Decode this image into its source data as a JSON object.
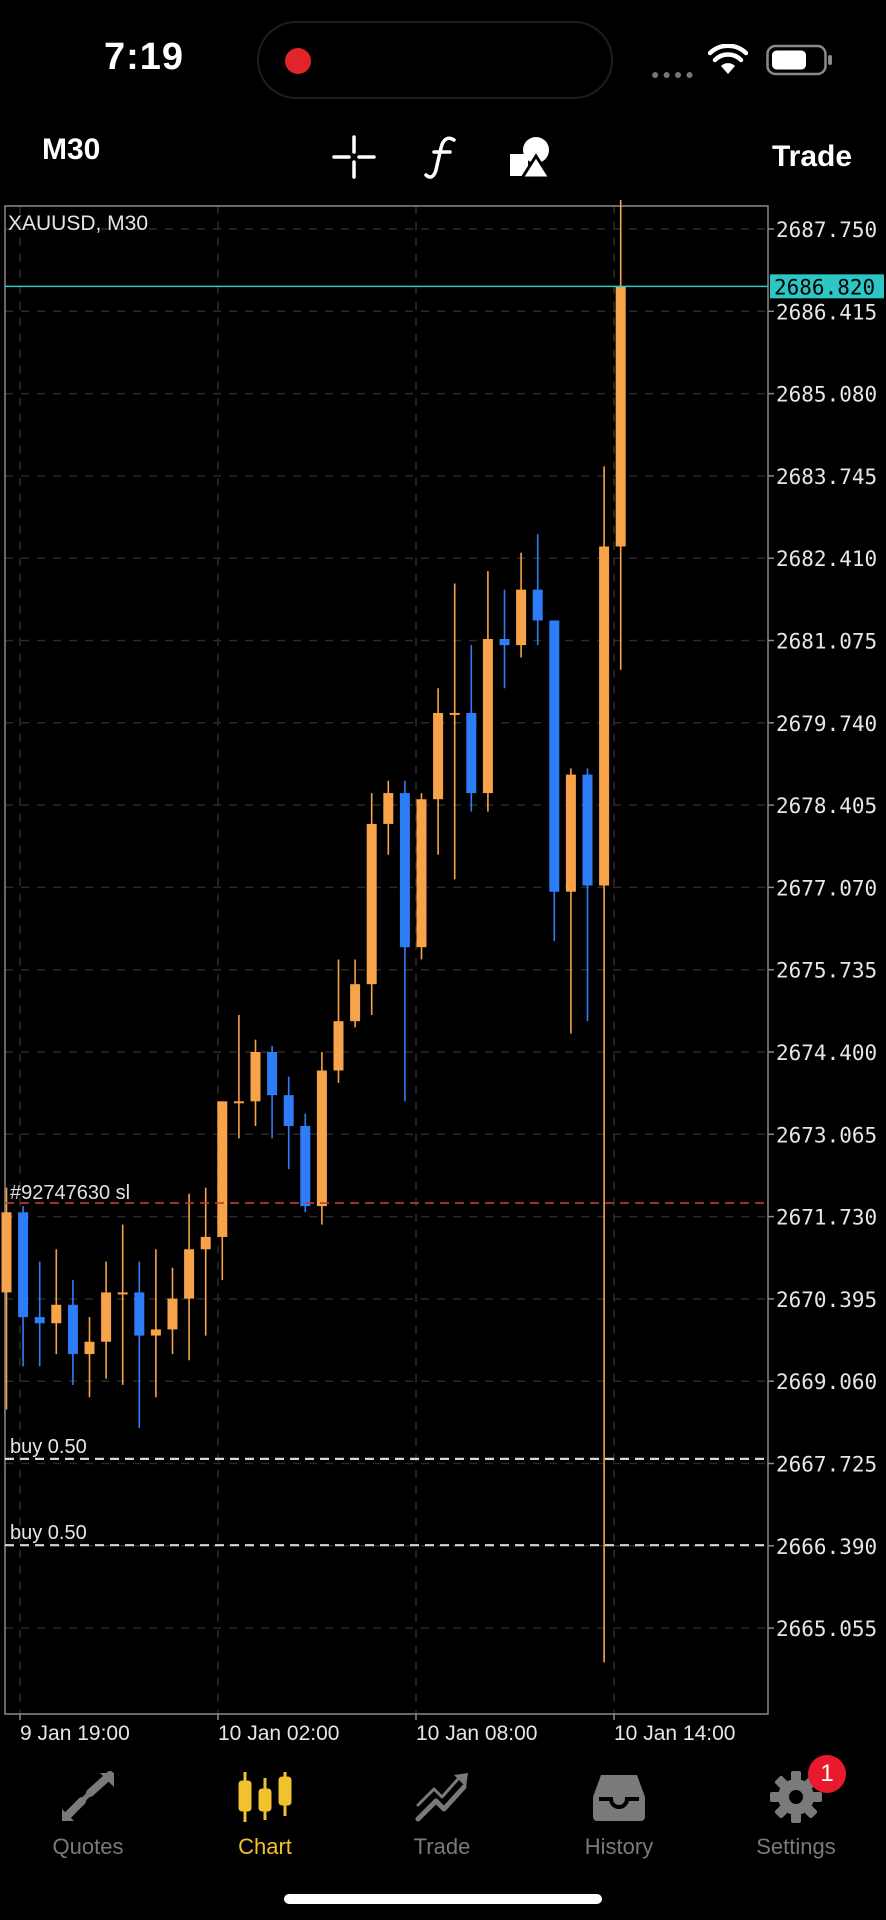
{
  "status": {
    "time": "7:19"
  },
  "toolbar": {
    "timeframe": "M30",
    "trade_label": "Trade",
    "tools": [
      "crosshair-icon",
      "indicator-function-icon",
      "shapes-icon"
    ]
  },
  "chart": {
    "symbol_label": "XAUUSD, M30",
    "current_price": "2686.820",
    "y_ticks": [
      "2687.750",
      "2686.415",
      "2685.080",
      "2683.745",
      "2682.410",
      "2681.075",
      "2679.740",
      "2678.405",
      "2677.070",
      "2675.735",
      "2674.400",
      "2673.065",
      "2671.730",
      "2670.395",
      "2669.060",
      "2667.725",
      "2666.390",
      "2665.055"
    ],
    "x_ticks": [
      "9 Jan 19:00",
      "10 Jan 02:00",
      "10 Jan 08:00",
      "10 Jan 14:00"
    ],
    "sl_label": "#92747630 sl",
    "order_lines": [
      {
        "label": "buy 0.50",
        "price": 2667.8
      },
      {
        "label": "buy 0.50",
        "price": 2666.4
      }
    ],
    "colors": {
      "bull": "#f6a34a",
      "bear": "#2f7df6",
      "sl": "#c43a34",
      "price_line": "#2cc6c4"
    }
  },
  "chart_data": {
    "type": "candlestick",
    "symbol": "XAUUSD",
    "timeframe": "M30",
    "ylim": [
      2664.2,
      2688.6
    ],
    "current_price": 2686.82,
    "stop_loss": 2671.95,
    "candles": [
      {
        "o": 2670.5,
        "h": 2672.2,
        "l": 2668.6,
        "c": 2671.8
      },
      {
        "o": 2671.8,
        "h": 2671.9,
        "l": 2669.3,
        "c": 2670.1
      },
      {
        "o": 2670.1,
        "h": 2671.0,
        "l": 2669.3,
        "c": 2670.0
      },
      {
        "o": 2670.0,
        "h": 2671.2,
        "l": 2669.5,
        "c": 2670.3
      },
      {
        "o": 2670.3,
        "h": 2670.7,
        "l": 2669.0,
        "c": 2669.5
      },
      {
        "o": 2669.5,
        "h": 2670.1,
        "l": 2668.8,
        "c": 2669.7
      },
      {
        "o": 2669.7,
        "h": 2671.0,
        "l": 2669.1,
        "c": 2670.5
      },
      {
        "o": 2670.5,
        "h": 2671.6,
        "l": 2669.0,
        "c": 2670.5
      },
      {
        "o": 2670.5,
        "h": 2671.0,
        "l": 2668.3,
        "c": 2669.8
      },
      {
        "o": 2669.8,
        "h": 2671.2,
        "l": 2668.8,
        "c": 2669.9
      },
      {
        "o": 2669.9,
        "h": 2670.9,
        "l": 2669.5,
        "c": 2670.4
      },
      {
        "o": 2670.4,
        "h": 2672.1,
        "l": 2669.4,
        "c": 2671.2
      },
      {
        "o": 2671.2,
        "h": 2672.2,
        "l": 2669.8,
        "c": 2671.4
      },
      {
        "o": 2671.4,
        "h": 2673.6,
        "l": 2670.7,
        "c": 2673.6
      },
      {
        "o": 2673.6,
        "h": 2675.0,
        "l": 2673.0,
        "c": 2673.6
      },
      {
        "o": 2673.6,
        "h": 2674.6,
        "l": 2673.2,
        "c": 2674.4
      },
      {
        "o": 2674.4,
        "h": 2674.5,
        "l": 2673.0,
        "c": 2673.7
      },
      {
        "o": 2673.7,
        "h": 2674.0,
        "l": 2672.5,
        "c": 2673.2
      },
      {
        "o": 2673.2,
        "h": 2673.4,
        "l": 2671.8,
        "c": 2671.9
      },
      {
        "o": 2671.9,
        "h": 2674.4,
        "l": 2671.6,
        "c": 2674.1
      },
      {
        "o": 2674.1,
        "h": 2675.9,
        "l": 2673.9,
        "c": 2674.9
      },
      {
        "o": 2674.9,
        "h": 2675.9,
        "l": 2674.8,
        "c": 2675.5
      },
      {
        "o": 2675.5,
        "h": 2678.6,
        "l": 2675.0,
        "c": 2678.1
      },
      {
        "o": 2678.1,
        "h": 2678.8,
        "l": 2677.6,
        "c": 2678.6
      },
      {
        "o": 2678.6,
        "h": 2678.8,
        "l": 2673.6,
        "c": 2676.1
      },
      {
        "o": 2676.1,
        "h": 2678.6,
        "l": 2675.9,
        "c": 2678.5
      },
      {
        "o": 2678.5,
        "h": 2680.3,
        "l": 2677.6,
        "c": 2679.9
      },
      {
        "o": 2679.9,
        "h": 2682.0,
        "l": 2677.2,
        "c": 2679.9
      },
      {
        "o": 2679.9,
        "h": 2681.0,
        "l": 2678.3,
        "c": 2678.6
      },
      {
        "o": 2678.6,
        "h": 2682.2,
        "l": 2678.3,
        "c": 2681.1
      },
      {
        "o": 2681.1,
        "h": 2681.9,
        "l": 2680.3,
        "c": 2681.0
      },
      {
        "o": 2681.0,
        "h": 2682.5,
        "l": 2680.8,
        "c": 2681.9
      },
      {
        "o": 2681.9,
        "h": 2682.8,
        "l": 2681.0,
        "c": 2681.4
      },
      {
        "o": 2681.4,
        "h": 2681.4,
        "l": 2676.2,
        "c": 2677.0
      },
      {
        "o": 2677.0,
        "h": 2679.0,
        "l": 2674.7,
        "c": 2678.9
      },
      {
        "o": 2678.9,
        "h": 2679.0,
        "l": 2674.9,
        "c": 2677.1
      },
      {
        "o": 2677.1,
        "h": 2683.9,
        "l": 2664.5,
        "c": 2682.6
      },
      {
        "o": 2682.6,
        "h": 2688.3,
        "l": 2680.6,
        "c": 2686.82
      }
    ]
  },
  "tabs": [
    {
      "label": "Quotes",
      "icon": "quotes-arrows-icon",
      "active": false
    },
    {
      "label": "Chart",
      "icon": "candlestick-chart-icon",
      "active": true
    },
    {
      "label": "Trade",
      "icon": "trade-trend-icon",
      "active": false
    },
    {
      "label": "History",
      "icon": "history-inbox-icon",
      "active": false
    },
    {
      "label": "Settings",
      "icon": "gear-icon",
      "active": false,
      "badge": "1"
    }
  ]
}
